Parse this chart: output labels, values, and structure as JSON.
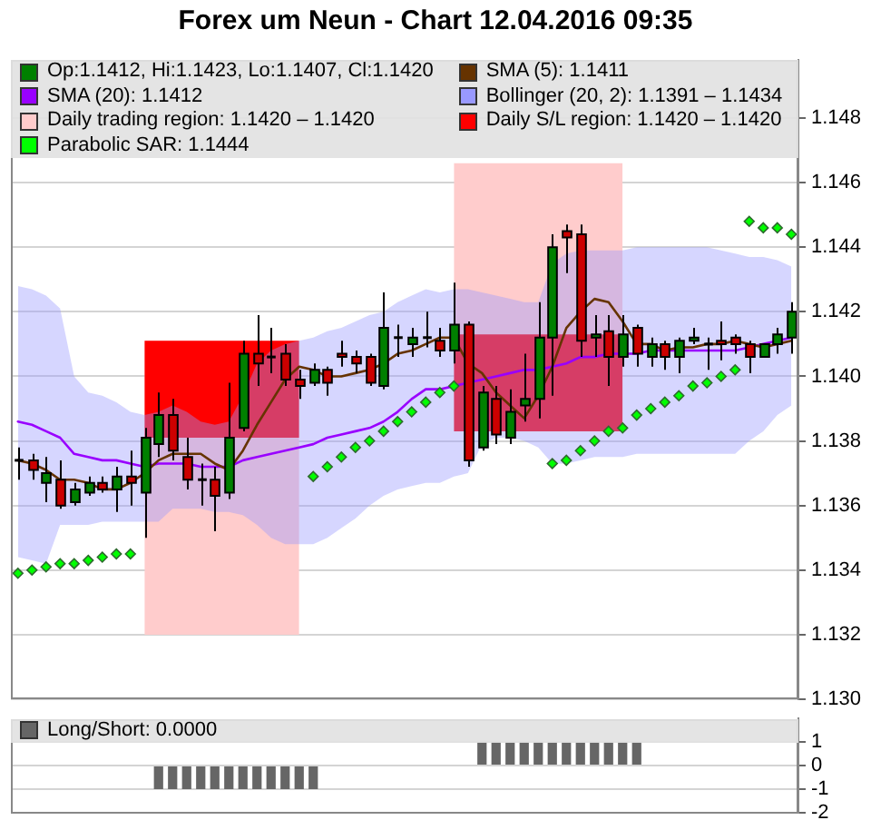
{
  "chart_data": [
    {
      "type": "candlestick",
      "title": "Forex um Neun - Chart 12.04.2016 09:35",
      "categories": [
        null,
        null,
        null,
        null,
        null,
        null,
        null,
        null,
        null,
        null,
        null,
        null,
        null,
        null,
        null,
        null,
        null,
        null,
        null,
        null,
        null,
        null,
        null,
        null,
        null,
        null,
        null,
        null,
        null,
        null,
        null,
        null,
        null,
        null,
        null,
        null,
        null,
        null,
        null,
        null,
        null,
        null,
        null,
        null,
        null,
        null,
        null,
        null,
        null,
        null,
        null,
        null,
        null,
        null,
        null,
        null
      ],
      "ylim": [
        1.13,
        1.1498
      ],
      "yticks": [
        {
          "value": 1.13,
          "label": "1.130"
        },
        1.132,
        1.134,
        1.136,
        1.138,
        {
          "value": 1.14,
          "label": "1.140"
        },
        1.142,
        1.144,
        1.146,
        1.148
      ],
      "grid": "y",
      "legend": "top",
      "tick_labels": "y",
      "series": [
        {
          "name": "Op:1.1412, Hi:1.1423, Lo:1.1407, Cl:1.1420",
          "type": "candlestick",
          "color": "#008000",
          "colors": [
            "#000000",
            "#cc0000",
            "#008000",
            "#cc0000",
            "#008000",
            "#008000",
            "#cc0000",
            "#008000",
            "#cc0000",
            "#008000",
            "#008000",
            "#cc0000",
            "#cc0000",
            "#000000",
            "#cc0000",
            "#008000",
            "#008000",
            "#cc0000",
            "#000000",
            "#cc0000",
            "#cc0000",
            "#008000",
            "#cc0000",
            "#cc0000",
            "#cc0000",
            "#cc0000",
            "#008000",
            "#000000",
            "#008000",
            "#000000",
            "#cc0000",
            "#008000",
            "#cc0000",
            "#008000",
            "#cc0000",
            "#008000",
            "#008000",
            "#008000",
            "#008000",
            "#cc0000",
            "#cc0000",
            "#008000",
            "#cc0000",
            "#008000",
            "#cc0000",
            "#008000",
            "#cc0000",
            "#008000",
            "#008000",
            "#000000",
            "#cc0000",
            "#cc0000",
            "#cc0000",
            "#008000",
            "#008000",
            "#008000"
          ],
          "ohlc": [
            [
              1.1374,
              1.1378,
              1.1368,
              1.1374
            ],
            [
              1.1374,
              1.1376,
              1.1368,
              1.1371
            ],
            [
              1.1367,
              1.1375,
              1.1361,
              1.137
            ],
            [
              1.1368,
              1.1374,
              1.1359,
              1.136
            ],
            [
              1.1361,
              1.1367,
              1.136,
              1.1365
            ],
            [
              1.1364,
              1.1369,
              1.1363,
              1.1367
            ],
            [
              1.1367,
              1.1369,
              1.1364,
              1.1365
            ],
            [
              1.1365,
              1.1372,
              1.1358,
              1.1369
            ],
            [
              1.1369,
              1.1377,
              1.136,
              1.1367
            ],
            [
              1.1364,
              1.1384,
              1.135,
              1.1381
            ],
            [
              1.1379,
              1.1395,
              1.1375,
              1.1388
            ],
            [
              1.1388,
              1.1393,
              1.1374,
              1.1377
            ],
            [
              1.1375,
              1.1381,
              1.1365,
              1.1368
            ],
            [
              1.1368,
              1.1373,
              1.136,
              1.1368
            ],
            [
              1.1368,
              1.1372,
              1.1352,
              1.1363
            ],
            [
              1.1364,
              1.1398,
              1.1362,
              1.1381
            ],
            [
              1.1384,
              1.1411,
              1.1383,
              1.1407
            ],
            [
              1.1407,
              1.1419,
              1.1397,
              1.1404
            ],
            [
              1.1406,
              1.1415,
              1.1401,
              1.1406
            ],
            [
              1.1407,
              1.141,
              1.1397,
              1.1399
            ],
            [
              1.1399,
              1.1402,
              1.1393,
              1.1397
            ],
            [
              1.1398,
              1.1404,
              1.1397,
              1.1402
            ],
            [
              1.1402,
              1.1403,
              1.1394,
              1.1398
            ],
            [
              1.1407,
              1.1411,
              1.1403,
              1.1406
            ],
            [
              1.1406,
              1.1408,
              1.1401,
              1.1404
            ],
            [
              1.1406,
              1.1407,
              1.1397,
              1.1398
            ],
            [
              1.1397,
              1.1426,
              1.1396,
              1.1415
            ],
            [
              1.1412,
              1.1416,
              1.1406,
              1.1412
            ],
            [
              1.141,
              1.1415,
              1.1406,
              1.1412
            ],
            [
              1.1412,
              1.142,
              1.1409,
              1.1412
            ],
            [
              1.1411,
              1.1415,
              1.1406,
              1.1408
            ],
            [
              1.1408,
              1.1429,
              1.1404,
              1.1416
            ],
            [
              1.1416,
              1.1417,
              1.1372,
              1.1374
            ],
            [
              1.1378,
              1.1397,
              1.1377,
              1.1395
            ],
            [
              1.1393,
              1.1397,
              1.1379,
              1.1382
            ],
            [
              1.1381,
              1.1396,
              1.1379,
              1.1389
            ],
            [
              1.1391,
              1.1407,
              1.1386,
              1.1393
            ],
            [
              1.1393,
              1.1423,
              1.1387,
              1.1412
            ],
            [
              1.1412,
              1.1444,
              1.1394,
              1.144
            ],
            [
              1.1445,
              1.1447,
              1.1432,
              1.1443
            ],
            [
              1.1444,
              1.1447,
              1.1406,
              1.1411
            ],
            [
              1.1412,
              1.1419,
              1.1406,
              1.1413
            ],
            [
              1.1414,
              1.1419,
              1.1397,
              1.1406
            ],
            [
              1.1406,
              1.1419,
              1.1403,
              1.1413
            ],
            [
              1.1415,
              1.1416,
              1.1403,
              1.1407
            ],
            [
              1.1406,
              1.1412,
              1.1403,
              1.141
            ],
            [
              1.141,
              1.1411,
              1.1402,
              1.1406
            ],
            [
              1.1406,
              1.1412,
              1.1401,
              1.1411
            ],
            [
              1.1411,
              1.1415,
              1.141,
              1.1412
            ],
            [
              1.141,
              1.1412,
              1.1402,
              1.141
            ],
            [
              1.1411,
              1.1417,
              1.1405,
              1.141
            ],
            [
              1.1412,
              1.1413,
              1.1407,
              1.141
            ],
            [
              1.141,
              1.1411,
              1.1401,
              1.1406
            ],
            [
              1.1406,
              1.141,
              1.1406,
              1.141
            ],
            [
              1.141,
              1.1415,
              1.1407,
              1.1413
            ],
            [
              1.1412,
              1.1423,
              1.1407,
              1.142
            ]
          ]
        },
        {
          "name": "SMA (5): 1.1411",
          "type": "line",
          "color": "#663300",
          "values": [
            1.1374,
            1.1373,
            1.1371,
            1.1368,
            1.1368,
            1.1367,
            1.1365,
            1.1365,
            1.1367,
            1.137,
            1.1374,
            1.1376,
            1.1376,
            1.1376,
            1.1373,
            1.1371,
            1.1377,
            1.1385,
            1.1392,
            1.1399,
            1.1403,
            1.1402,
            1.14,
            1.14,
            1.1401,
            1.1402,
            1.1404,
            1.1407,
            1.1408,
            1.141,
            1.1412,
            1.1412,
            1.1404,
            1.1401,
            1.1395,
            1.1391,
            1.1387,
            1.1394,
            1.1403,
            1.1415,
            1.142,
            1.1424,
            1.1423,
            1.1417,
            1.141,
            1.141,
            1.1408,
            1.1409,
            1.1409,
            1.141,
            1.141,
            1.1411,
            1.141,
            1.1409,
            1.141,
            1.1411
          ]
        },
        {
          "name": "SMA (20): 1.1412",
          "type": "line",
          "color": "#9900ff",
          "values": [
            1.1386,
            1.1385,
            1.1383,
            1.1381,
            1.1376,
            1.1375,
            1.1374,
            1.1374,
            1.1373,
            1.1372,
            1.1373,
            1.1373,
            1.1373,
            1.1372,
            1.1372,
            1.1372,
            1.1374,
            1.1375,
            1.1376,
            1.1377,
            1.1378,
            1.1379,
            1.1381,
            1.1382,
            1.1383,
            1.1384,
            1.1386,
            1.1389,
            1.1393,
            1.1396,
            1.1396,
            1.1397,
            1.1398,
            1.1399,
            1.14,
            1.1401,
            1.1402,
            1.1402,
            1.1403,
            1.1404,
            1.1406,
            1.1406,
            1.1407,
            1.1407,
            1.1407,
            1.1408,
            1.1408,
            1.1408,
            1.1408,
            1.1408,
            1.1408,
            1.1408,
            1.1409,
            1.141,
            1.1411,
            1.1412
          ]
        },
        {
          "name": "Bollinger (20, 2): 1.1391 – 1.1434",
          "type": "area",
          "color": "#9999ff",
          "values": [
            null,
            null,
            null,
            null,
            null,
            null,
            null,
            null,
            null,
            null,
            null,
            null,
            null,
            null,
            null,
            null,
            null,
            null,
            null,
            null,
            null,
            null,
            null,
            null,
            null,
            null,
            null,
            null,
            null,
            null,
            null,
            null,
            null,
            null,
            null,
            null,
            null,
            null,
            null,
            null,
            null,
            null,
            null,
            null,
            null,
            null,
            null,
            null,
            null,
            null,
            null,
            null,
            null,
            null,
            null,
            null
          ],
          "lower": [
            1.1344,
            1.1343,
            1.1342,
            1.1354,
            1.1354,
            1.1354,
            1.1355,
            1.1355,
            1.1355,
            1.1355,
            1.1355,
            1.1359,
            1.1359,
            1.1359,
            1.1358,
            1.1358,
            1.1357,
            1.1354,
            1.135,
            1.1348,
            1.1348,
            1.1348,
            1.135,
            1.1353,
            1.1356,
            1.136,
            1.1363,
            1.1365,
            1.1366,
            1.1367,
            1.1367,
            1.1369,
            1.137,
            1.1379,
            1.1381,
            1.1381,
            1.138,
            1.1378,
            1.1373,
            1.1373,
            1.1374,
            1.1375,
            1.1375,
            1.1375,
            1.1376,
            1.1376,
            1.1376,
            1.1376,
            1.1376,
            1.1376,
            1.1376,
            1.1376,
            1.138,
            1.1383,
            1.1388,
            1.1391
          ],
          "upper": [
            1.1428,
            1.1427,
            1.1425,
            1.1421,
            1.14,
            1.1395,
            1.1394,
            1.1392,
            1.1389,
            1.1388,
            1.1389,
            1.1391,
            1.1389,
            1.1386,
            1.1385,
            1.1386,
            1.1394,
            1.1404,
            1.1408,
            1.141,
            1.1411,
            1.1412,
            1.1414,
            1.1415,
            1.1417,
            1.1419,
            1.142,
            1.1423,
            1.1425,
            1.1427,
            1.1426,
            1.1427,
            1.1427,
            1.1426,
            1.1425,
            1.1424,
            1.1423,
            1.1423,
            1.1435,
            1.1438,
            1.1439,
            1.1439,
            1.1439,
            1.1439,
            1.144,
            1.144,
            1.144,
            1.144,
            1.144,
            1.144,
            1.1439,
            1.1438,
            1.1437,
            1.1437,
            1.1436,
            1.1434
          ]
        },
        {
          "name": "Daily trading region: 1.1420 – 1.1420",
          "type": "area",
          "color": "#ffcccc",
          "values": [
            null,
            null,
            null,
            null,
            null,
            null,
            null,
            null,
            null,
            null,
            null,
            null,
            null,
            null,
            null,
            null,
            null,
            null,
            null,
            null,
            null,
            null,
            null,
            null,
            null,
            null,
            null,
            null,
            null,
            null,
            null,
            null,
            null,
            null,
            null,
            null,
            null,
            null,
            null,
            null,
            null,
            null,
            null,
            null,
            null,
            null,
            null,
            null,
            null,
            null,
            null,
            null,
            null,
            null,
            null,
            null
          ],
          "lower": [
            null,
            null,
            null,
            null,
            null,
            null,
            null,
            null,
            null,
            1.132,
            1.132,
            1.132,
            1.132,
            1.132,
            1.132,
            1.132,
            1.132,
            1.132,
            1.132,
            1.132,
            1.132,
            null,
            null,
            null,
            null,
            null,
            null,
            null,
            null,
            null,
            null,
            1.1383,
            1.1383,
            1.1383,
            1.1383,
            1.1383,
            1.1383,
            1.1383,
            1.1383,
            1.1383,
            1.1383,
            1.1383,
            1.1383,
            1.1383,
            null,
            null,
            null,
            null,
            null,
            null,
            null,
            null,
            null,
            null,
            null,
            null
          ],
          "upper": [
            null,
            null,
            null,
            null,
            null,
            null,
            null,
            null,
            null,
            1.1411,
            1.1411,
            1.1411,
            1.1411,
            1.1411,
            1.1411,
            1.1411,
            1.1411,
            1.1411,
            1.1411,
            1.1411,
            1.1411,
            null,
            null,
            null,
            null,
            null,
            null,
            null,
            null,
            null,
            null,
            1.1466,
            1.1466,
            1.1466,
            1.1466,
            1.1466,
            1.1466,
            1.1466,
            1.1466,
            1.1466,
            1.1466,
            1.1466,
            1.1466,
            1.1466,
            null,
            null,
            null,
            null,
            null,
            null,
            null,
            null,
            null,
            null,
            null,
            null
          ]
        },
        {
          "name": "Daily S/L region: 1.1420 – 1.1420",
          "type": "area",
          "color": "#ff0000",
          "values": [
            null,
            null,
            null,
            null,
            null,
            null,
            null,
            null,
            null,
            null,
            null,
            null,
            null,
            null,
            null,
            null,
            null,
            null,
            null,
            null,
            null,
            null,
            null,
            null,
            null,
            null,
            null,
            null,
            null,
            null,
            null,
            null,
            null,
            null,
            null,
            null,
            null,
            null,
            null,
            null,
            null,
            null,
            null,
            null,
            null,
            null,
            null,
            null,
            null,
            null,
            null,
            null,
            null,
            null,
            null,
            null
          ],
          "lower": [
            null,
            null,
            null,
            null,
            null,
            null,
            null,
            null,
            null,
            1.1381,
            1.1381,
            1.1381,
            1.1381,
            1.1381,
            1.1381,
            1.1381,
            1.1381,
            1.1381,
            1.1381,
            1.1381,
            1.1381,
            null,
            null,
            null,
            null,
            null,
            null,
            null,
            null,
            null,
            null,
            1.1383,
            1.1383,
            1.1383,
            1.1383,
            1.1383,
            1.1383,
            1.1383,
            1.1383,
            1.1383,
            1.1383,
            1.1383,
            1.1383,
            1.1383,
            null,
            null,
            null,
            null,
            null,
            null,
            null,
            null,
            null,
            null,
            null,
            null
          ],
          "upper": [
            null,
            null,
            null,
            null,
            null,
            null,
            null,
            null,
            null,
            1.1411,
            1.1411,
            1.1411,
            1.1411,
            1.1411,
            1.1411,
            1.1411,
            1.1411,
            1.1411,
            1.1411,
            1.1411,
            1.1411,
            null,
            null,
            null,
            null,
            null,
            null,
            null,
            null,
            null,
            null,
            1.1413,
            1.1413,
            1.1413,
            1.1413,
            1.1413,
            1.1413,
            1.1413,
            1.1413,
            1.1413,
            1.1413,
            1.1413,
            1.1413,
            1.1413,
            null,
            null,
            null,
            null,
            null,
            null,
            null,
            null,
            null,
            null,
            null,
            null
          ]
        },
        {
          "name": "Parabolic SAR: 1.1444",
          "type": "scatter",
          "color": "#00ff00",
          "marker": "diamond",
          "values": [
            1.1339,
            1.134,
            1.1341,
            1.1342,
            1.1342,
            1.1343,
            1.1344,
            1.1345,
            1.1345,
            null,
            null,
            null,
            null,
            null,
            null,
            null,
            null,
            null,
            null,
            null,
            null,
            1.1369,
            1.1372,
            1.1375,
            1.1378,
            1.138,
            1.1383,
            1.1386,
            1.1389,
            1.1392,
            1.1395,
            1.1397,
            null,
            null,
            null,
            null,
            null,
            null,
            1.1373,
            1.1374,
            1.1377,
            1.138,
            1.1383,
            1.1384,
            1.1388,
            1.139,
            1.1392,
            1.1394,
            1.1397,
            1.1398,
            1.14,
            1.1402,
            1.1448,
            1.1446,
            1.1446,
            1.1444
          ]
        }
      ]
    },
    {
      "type": "bar",
      "categories": [
        null,
        null,
        null,
        null,
        null,
        null,
        null,
        null,
        null,
        null,
        null,
        null,
        null,
        null,
        null,
        null,
        null,
        null,
        null,
        null,
        null,
        null,
        null,
        null,
        null,
        null,
        null,
        null,
        null,
        null,
        null,
        null,
        null,
        null,
        null,
        null,
        null,
        null,
        null,
        null,
        null,
        null,
        null,
        null,
        null,
        null,
        null,
        null,
        null,
        null,
        null,
        null,
        null,
        null,
        null,
        null
      ],
      "ylim": [
        -2,
        2
      ],
      "yticks": [
        -2,
        -1,
        0,
        1
      ],
      "grid": "y",
      "legend": "top",
      "tick_labels": "y",
      "series": [
        {
          "name": "Long/Short: 0.0000",
          "color": "#666666",
          "values": [
            0,
            0,
            0,
            0,
            0,
            0,
            0,
            0,
            0,
            0,
            -1,
            -1,
            -1,
            -1,
            -1,
            -1,
            -1,
            -1,
            -1,
            -1,
            -1,
            -1,
            0,
            0,
            0,
            0,
            0,
            0,
            0,
            0,
            0,
            0,
            0,
            1,
            1,
            1,
            1,
            1,
            1,
            1,
            1,
            1,
            1,
            1,
            1,
            0,
            0,
            0,
            0,
            0,
            0,
            0,
            0,
            0,
            0,
            0
          ]
        }
      ]
    }
  ]
}
